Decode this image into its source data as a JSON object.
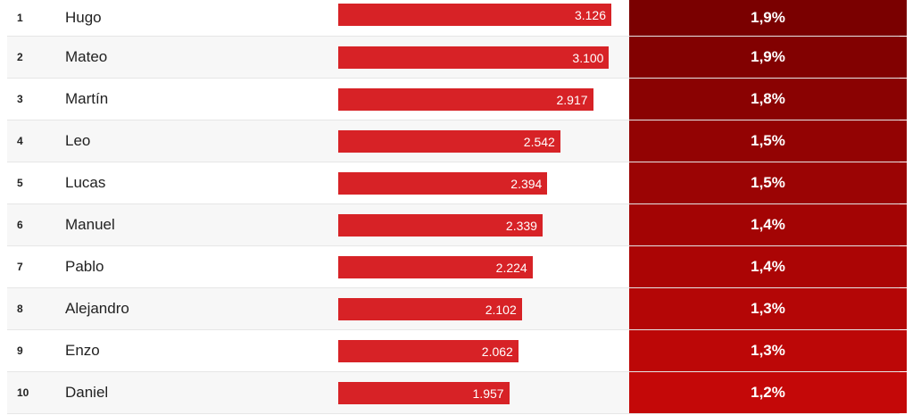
{
  "chart_data": {
    "type": "table",
    "columns": [
      "rank",
      "name",
      "count",
      "percent"
    ],
    "rows": [
      {
        "rank": "1",
        "name": "Hugo",
        "value": 3126,
        "value_label": "3.126",
        "percent": 1.9,
        "percent_label": "1,9%"
      },
      {
        "rank": "2",
        "name": "Mateo",
        "value": 3100,
        "value_label": "3.100",
        "percent": 1.9,
        "percent_label": "1,9%"
      },
      {
        "rank": "3",
        "name": "Martín",
        "value": 2917,
        "value_label": "2.917",
        "percent": 1.8,
        "percent_label": "1,8%"
      },
      {
        "rank": "4",
        "name": "Leo",
        "value": 2542,
        "value_label": "2.542",
        "percent": 1.5,
        "percent_label": "1,5%"
      },
      {
        "rank": "5",
        "name": "Lucas",
        "value": 2394,
        "value_label": "2.394",
        "percent": 1.5,
        "percent_label": "1,5%"
      },
      {
        "rank": "6",
        "name": "Manuel",
        "value": 2339,
        "value_label": "2.339",
        "percent": 1.4,
        "percent_label": "1,4%"
      },
      {
        "rank": "7",
        "name": "Pablo",
        "value": 2224,
        "value_label": "2.224",
        "percent": 1.4,
        "percent_label": "1,4%"
      },
      {
        "rank": "8",
        "name": "Alejandro",
        "value": 2102,
        "value_label": "2.102",
        "percent": 1.3,
        "percent_label": "1,3%"
      },
      {
        "rank": "9",
        "name": "Enzo",
        "value": 2062,
        "value_label": "2.062",
        "percent": 1.3,
        "percent_label": "1,3%"
      },
      {
        "rank": "10",
        "name": "Daniel",
        "value": 1957,
        "value_label": "1.957",
        "percent": 1.2,
        "percent_label": "1,2%"
      }
    ],
    "colors": {
      "bar": "#d72226",
      "heat_dark": "#7a0000",
      "heat_light": "#c40808"
    }
  }
}
